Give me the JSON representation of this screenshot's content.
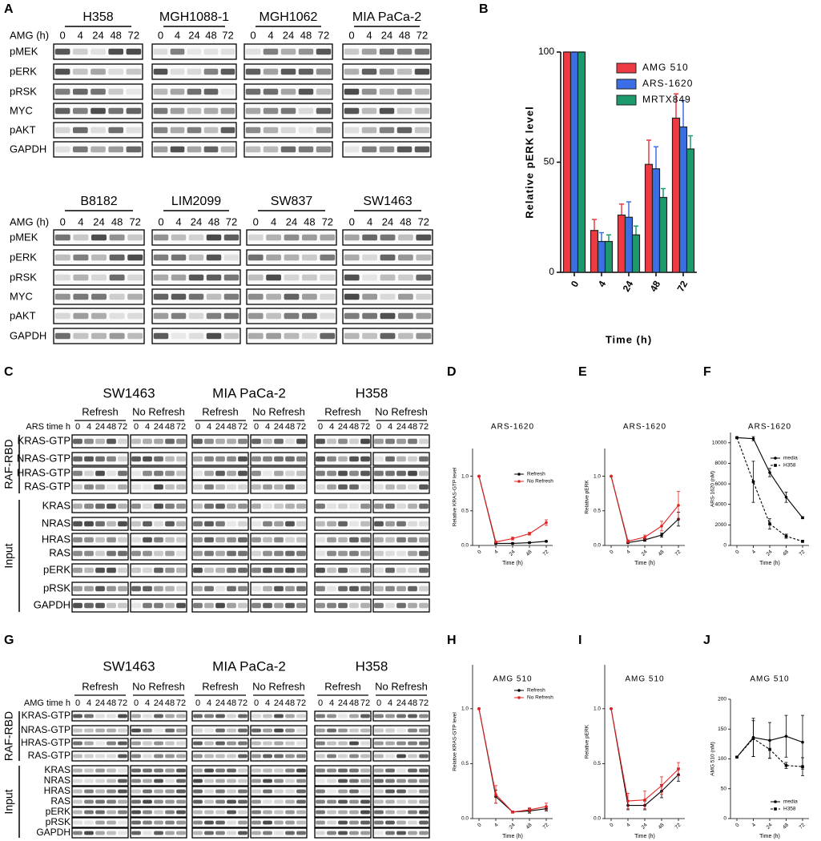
{
  "panel_a": {
    "label": "A",
    "row_header": "AMG (h)",
    "times": [
      "0",
      "4",
      "24",
      "48",
      "72"
    ],
    "rows": [
      "pMEK",
      "pERK",
      "pRSK",
      "MYC",
      "pAKT",
      "GAPDH"
    ],
    "cell_lines": [
      [
        "H358",
        "MGH1088-1",
        "MGH1062",
        "MIA PaCa-2"
      ],
      [
        "B8182",
        "LIM2099",
        "SW837",
        "SW1463"
      ]
    ]
  },
  "panel_c": {
    "label": "C",
    "row_header": "ARS time h",
    "times": [
      "0",
      "4",
      "24",
      "48",
      "72"
    ],
    "cell_lines": [
      "SW1463",
      "MIA PaCa-2",
      "H358"
    ],
    "conditions": [
      "Refresh",
      "No Refresh"
    ],
    "groups": [
      {
        "name": "RAF-RBD",
        "rows": [
          "KRAS-GTP",
          "NRAS-GTP",
          "HRAS-GTP",
          "RAS-GTP"
        ]
      },
      {
        "name": "Input",
        "rows": [
          "KRAS",
          "NRAS",
          "HRAS",
          "RAS",
          "pERK",
          "pRSK",
          "GAPDH"
        ]
      }
    ]
  },
  "panel_g": {
    "label": "G",
    "row_header": "AMG time h",
    "times": [
      "0",
      "4",
      "24",
      "48",
      "72"
    ],
    "cell_lines": [
      "SW1463",
      "MIA PaCa-2",
      "H358"
    ],
    "conditions": [
      "Refresh",
      "No Refresh"
    ],
    "groups": [
      {
        "name": "RAF-RBD",
        "rows": [
          "KRAS-GTP",
          "NRAS-GTP",
          "HRAS-GTP",
          "RAS-GTP"
        ]
      },
      {
        "name": "Input",
        "rows": [
          "KRAS",
          "NRAS",
          "HRAS",
          "RAS",
          "pERK",
          "pRSK",
          "GAPDH"
        ]
      }
    ]
  },
  "chart_data": [
    {
      "type": "bar",
      "label": "B",
      "y_label": "Relative pERK level",
      "x_label": "Time (h)",
      "categories": [
        "0",
        "4",
        "24",
        "48",
        "72"
      ],
      "series": [
        {
          "name": "AMG 510",
          "color": "#ee3a43",
          "values": [
            100,
            19,
            26,
            49,
            70
          ],
          "errors": [
            0,
            5,
            5,
            11,
            11
          ]
        },
        {
          "name": "ARS-1620",
          "color": "#3b6fe6",
          "values": [
            100,
            14,
            25,
            47,
            66
          ],
          "errors": [
            0,
            4,
            7,
            10,
            12
          ]
        },
        {
          "name": "MRTX849",
          "color": "#1b9a6c",
          "values": [
            100,
            14,
            17,
            34,
            56
          ],
          "errors": [
            0,
            3,
            4,
            4,
            6
          ]
        }
      ],
      "ylim": [
        0,
        100
      ],
      "yticks": [
        0,
        50,
        100
      ],
      "legend": "upper right"
    },
    {
      "type": "line",
      "label": "D",
      "title": "ARS-1620",
      "y_label": "Relative KRAS-GTP level",
      "x_label": "Time (h)",
      "categories": [
        "0",
        "4",
        "24",
        "48",
        "72"
      ],
      "series": [
        {
          "name": "Refresh",
          "color": "#000000",
          "values": [
            1,
            0.03,
            0.03,
            0.04,
            0.06
          ],
          "errors": [
            0,
            0.01,
            0.01,
            0.01,
            0.01
          ]
        },
        {
          "name": "No Refresh",
          "color": "#e32222",
          "values": [
            1,
            0.05,
            0.1,
            0.17,
            0.33
          ],
          "errors": [
            0,
            0.01,
            0.02,
            0.02,
            0.04
          ]
        }
      ],
      "ylim": [
        0,
        1.4
      ],
      "yticks": [
        {
          "value": 0,
          "label": "0.0"
        },
        {
          "value": 0.5,
          "label": "0.5"
        },
        {
          "value": 1,
          "label": "1.0"
        }
      ],
      "legend": "upper right"
    },
    {
      "type": "line",
      "label": "E",
      "title": "ARS-1620",
      "y_label": "Relative pERK",
      "x_label": "Time (h)",
      "categories": [
        "0",
        "4",
        "24",
        "48",
        "72"
      ],
      "series": [
        {
          "color": "#000000",
          "values": [
            1,
            0.04,
            0.08,
            0.15,
            0.38
          ],
          "errors": [
            0,
            0.01,
            0.02,
            0.03,
            0.1
          ]
        },
        {
          "color": "#e32222",
          "values": [
            1,
            0.06,
            0.12,
            0.28,
            0.58
          ],
          "errors": [
            0,
            0.02,
            0.03,
            0.07,
            0.2
          ]
        }
      ],
      "ylim": [
        0,
        1.4
      ],
      "yticks": [
        {
          "value": 0,
          "label": "0.0"
        },
        {
          "value": 0.5,
          "label": "0.5"
        },
        {
          "value": 1,
          "label": "1.0"
        }
      ]
    },
    {
      "type": "line",
      "label": "F",
      "title": "ARS-1620",
      "y_label": "ARS-1620 (nM)",
      "x_label": "Time (h)",
      "categories": [
        "0",
        "4",
        "24",
        "48",
        "72"
      ],
      "series": [
        {
          "name": "media",
          "color": "#000000",
          "marker": "circle",
          "dash": false,
          "values": [
            10500,
            10400,
            7100,
            4700,
            2700
          ],
          "errors": [
            0,
            200,
            400,
            500,
            100
          ]
        },
        {
          "name": "H358",
          "color": "#000000",
          "marker": "square",
          "dash": true,
          "values": [
            10500,
            6200,
            2100,
            900,
            400
          ],
          "errors": [
            0,
            2000,
            500,
            200,
            100
          ]
        }
      ],
      "ylim": [
        0,
        11000
      ],
      "yticks": [
        0,
        2000,
        4000,
        6000,
        8000,
        10000
      ],
      "legend": "upper right"
    },
    {
      "type": "line",
      "label": "H",
      "title": "AMG 510",
      "y_label": "Relative KRAS-GTP level",
      "x_label": "Time (h)",
      "categories": [
        "0",
        "4",
        "24",
        "48",
        "72"
      ],
      "series": [
        {
          "name": "Refresh",
          "color": "#000000",
          "values": [
            1,
            0.2,
            0.06,
            0.07,
            0.09
          ],
          "errors": [
            0,
            0.06,
            0.01,
            0.02,
            0.02
          ]
        },
        {
          "name": "No Refresh",
          "color": "#e32222",
          "values": [
            1,
            0.22,
            0.06,
            0.08,
            0.11
          ],
          "errors": [
            0,
            0.08,
            0.01,
            0.02,
            0.03
          ]
        }
      ],
      "ylim": [
        0,
        1.4
      ],
      "yticks": [
        {
          "value": 0,
          "label": "0.0"
        },
        {
          "value": 0.5,
          "label": "0.5"
        },
        {
          "value": 1,
          "label": "1.0"
        }
      ],
      "legend": "upper right"
    },
    {
      "type": "line",
      "label": "I",
      "title": "AMG 510",
      "y_label": "Relative pERK",
      "x_label": "Time (h)",
      "categories": [
        "0",
        "4",
        "24",
        "48",
        "72"
      ],
      "series": [
        {
          "color": "#000000",
          "values": [
            1,
            0.12,
            0.12,
            0.25,
            0.4
          ],
          "errors": [
            0,
            0.04,
            0.04,
            0.06,
            0.06
          ]
        },
        {
          "color": "#e32222",
          "values": [
            1,
            0.16,
            0.17,
            0.3,
            0.45
          ],
          "errors": [
            0,
            0.07,
            0.08,
            0.08,
            0.06
          ]
        }
      ],
      "ylim": [
        0,
        1.4
      ],
      "yticks": [
        {
          "value": 0,
          "label": "0.0"
        },
        {
          "value": 0.5,
          "label": "0.5"
        },
        {
          "value": 1,
          "label": "1.0"
        }
      ]
    },
    {
      "type": "line",
      "label": "J",
      "title": "AMG 510",
      "y_label": "AMG 510 (nM)",
      "x_label": "Time (h)",
      "categories": [
        "0",
        "4",
        "24",
        "48",
        "72"
      ],
      "series": [
        {
          "name": "media",
          "color": "#000000",
          "marker": "circle",
          "dash": false,
          "values": [
            103,
            136,
            131,
            138,
            128
          ],
          "errors": [
            0,
            32,
            30,
            35,
            45
          ]
        },
        {
          "name": "H358",
          "color": "#000000",
          "marker": "square",
          "dash": true,
          "values": [
            103,
            134,
            116,
            89,
            87
          ],
          "errors": [
            0,
            30,
            15,
            5,
            15
          ]
        }
      ],
      "ylim": [
        0,
        200
      ],
      "yticks": [
        0,
        50,
        100,
        150,
        200
      ],
      "legend": "lower right"
    }
  ]
}
